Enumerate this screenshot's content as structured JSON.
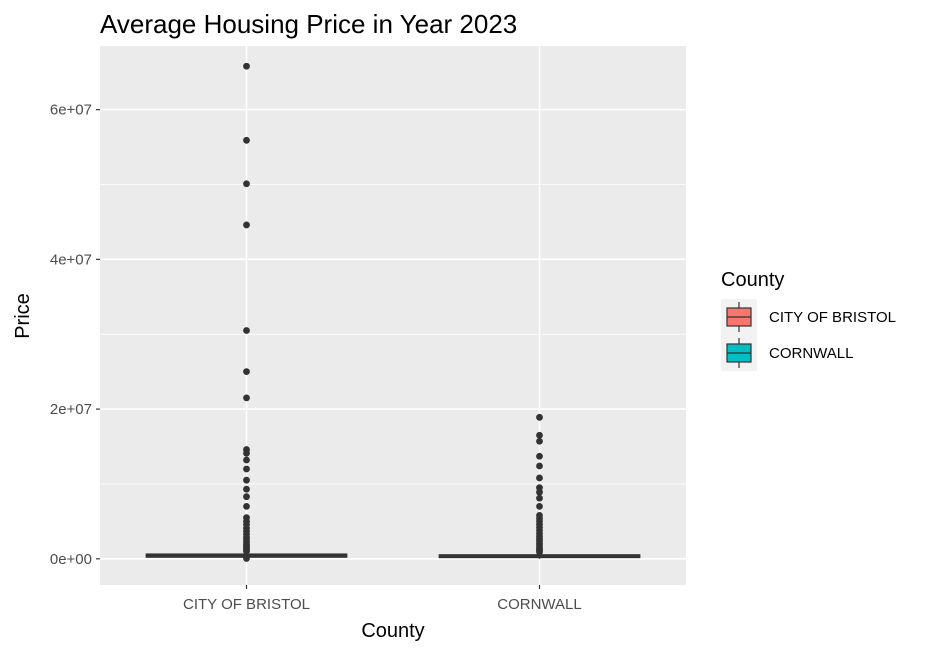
{
  "chart_data": {
    "type": "boxplot",
    "title": "Average Housing Price in Year 2023",
    "xlabel": "County",
    "ylabel": "Price",
    "categories": [
      "CITY OF BRISTOL",
      "CORNWALL"
    ],
    "ylim": [
      -3500000,
      68500000
    ],
    "y_ticks": [
      0,
      20000000,
      40000000,
      60000000
    ],
    "y_tick_labels": [
      "0e+00",
      "2e+07",
      "4e+07",
      "6e+07"
    ],
    "grid": true,
    "legend": {
      "title": "County",
      "placement": "right",
      "entries": [
        "CITY OF BRISTOL",
        "CORNWALL"
      ]
    },
    "colors": {
      "CITY OF BRISTOL": "#F8766D",
      "CORNWALL": "#00BFC4",
      "panel_background": "#EBEBEB",
      "outlier": "#333333"
    },
    "series": [
      {
        "category": "CITY OF BRISTOL",
        "box": {
          "q1": 300000,
          "median": 400000,
          "q3": 550000,
          "whisker_low": 0,
          "whisker_high": 900000
        },
        "outliers": [
          65800000,
          55900000,
          50100000,
          44600000,
          30500000,
          25000000,
          21500000,
          14600000,
          14100000,
          13200000,
          12000000,
          10500000,
          9300000,
          8300000,
          7000000,
          5500000,
          5000000,
          4600000,
          4100000,
          3700000,
          3300000,
          2900000,
          2600000,
          2300000,
          2000000,
          1800000,
          1600000,
          1400000,
          1200000,
          1000000,
          50000
        ]
      },
      {
        "category": "CORNWALL",
        "box": {
          "q1": 250000,
          "median": 330000,
          "q3": 450000,
          "whisker_low": 0,
          "whisker_high": 750000
        },
        "outliers": [
          18900000,
          16500000,
          15700000,
          13700000,
          12400000,
          10800000,
          9500000,
          8900000,
          8100000,
          7000000,
          5800000,
          5400000,
          5000000,
          4600000,
          4200000,
          3800000,
          3400000,
          3000000,
          2700000,
          2400000,
          2100000,
          1800000,
          1500000,
          1300000,
          1100000,
          900000
        ]
      }
    ]
  }
}
